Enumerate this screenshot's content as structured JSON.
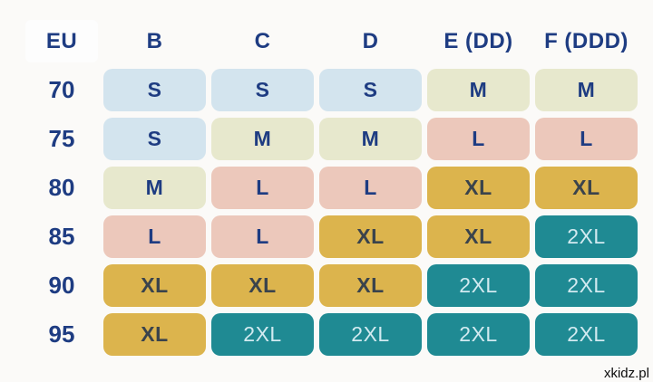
{
  "watermark": "xkidz.pl",
  "colors": {
    "background": "#fbfaf8",
    "navy_text": "#1e3c82",
    "size_s_bg": "#d3e4ee",
    "size_m_bg": "#e7e8cd",
    "size_l_bg": "#ecc8bb",
    "size_xl_bg": "#dcb44d",
    "size_xl_text": "#3a434c",
    "size_2xl_bg": "#1f8a93",
    "size_2xl_text": "#d2eaf0",
    "eu_header_bg": "#fdfdfd"
  },
  "chart_data": {
    "type": "table",
    "columns": [
      "EU",
      "B",
      "C",
      "D",
      "E (DD)",
      "F (DDD)"
    ],
    "rows": [
      {
        "eu": "70",
        "cells": [
          "S",
          "S",
          "S",
          "M",
          "M"
        ]
      },
      {
        "eu": "75",
        "cells": [
          "S",
          "M",
          "M",
          "L",
          "L"
        ]
      },
      {
        "eu": "80",
        "cells": [
          "M",
          "L",
          "L",
          "XL",
          "XL"
        ]
      },
      {
        "eu": "85",
        "cells": [
          "L",
          "L",
          "XL",
          "XL",
          "2XL"
        ]
      },
      {
        "eu": "90",
        "cells": [
          "XL",
          "XL",
          "XL",
          "2XL",
          "2XL"
        ]
      },
      {
        "eu": "95",
        "cells": [
          "XL",
          "2XL",
          "2XL",
          "2XL",
          "2XL"
        ]
      }
    ]
  }
}
